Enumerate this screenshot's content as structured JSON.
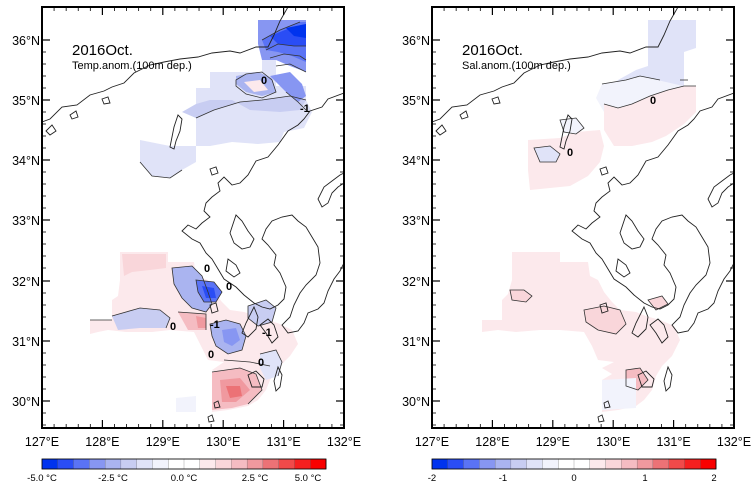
{
  "colors": {
    "coast": "#222222",
    "contour": "#333333",
    "frame": "#000000",
    "scale": [
      "#0033ee",
      "#2a4df5",
      "#5a73f5",
      "#8796f2",
      "#aab4f0",
      "#c8cdf2",
      "#e0e3f8",
      "#f2f3fc",
      "#ffffff",
      "#ffffff",
      "#fce9ec",
      "#f9d6da",
      "#f5bcc2",
      "#f0999f",
      "#ec7276",
      "#f04a4a",
      "#f51f1f",
      "#f90000"
    ]
  },
  "panels": [
    {
      "id": "temp",
      "title": "2016Oct.",
      "subtitle": "Temp.anom.(100m dep.)",
      "x_ticks": [
        "127°E",
        "128°E",
        "129°E",
        "130°E",
        "131°E",
        "132°E"
      ],
      "y_ticks": [
        "36°N",
        "35°N",
        "34°N",
        "33°N",
        "32°N",
        "31°N",
        "30°N"
      ],
      "colorbar_labels": [
        "-5.0 °C",
        "-2.5 °C",
        "0.0 °C",
        "2.5 °C",
        "5.0 °C"
      ],
      "contour_labels": [
        "0",
        "-1",
        "0",
        "0",
        "0",
        "-1",
        "0",
        "-1",
        "0"
      ]
    },
    {
      "id": "sal",
      "title": "2016Oct.",
      "subtitle": "Sal.anom.(100m dep.)",
      "x_ticks": [
        "127°E",
        "128°E",
        "129°E",
        "130°E",
        "131°E",
        "132°E"
      ],
      "y_ticks": [
        "36°N",
        "35°N",
        "34°N",
        "33°N",
        "32°N",
        "31°N",
        "30°N"
      ],
      "colorbar_labels": [
        "-2",
        "-1",
        "0",
        "1",
        "2"
      ],
      "contour_labels": [
        "0",
        "0"
      ]
    }
  ]
}
